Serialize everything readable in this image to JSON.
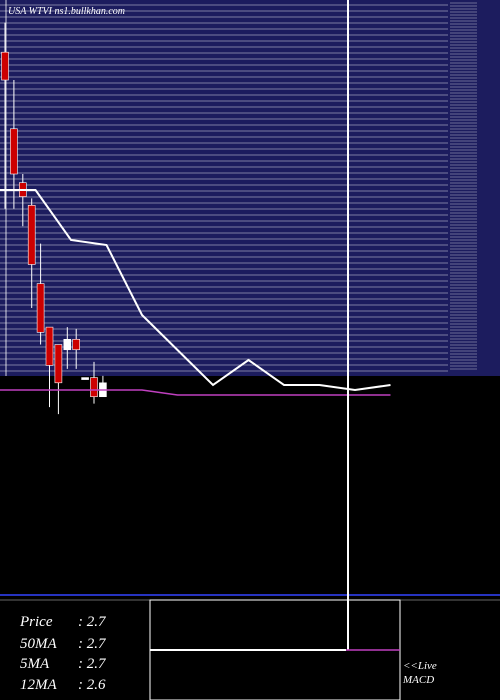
{
  "site": "USA WTVI ns1.bullkhan.com",
  "colors": {
    "price_background": "#1c1c5e",
    "grid_line": "#ffffff",
    "candle_down": "#cc0000",
    "candle_up": "#ffffff",
    "wick": "#ffffff",
    "indicator_line": "#ffffff",
    "ma_line": "#c040c0",
    "blue_line": "#3344ff"
  },
  "info": {
    "price_label": "Price",
    "price_value": ": 2.7",
    "ma50_label": "50MA",
    "ma50_value": ": 2.7",
    "ma5_label": "5MA",
    "ma5_value": ": 2.7",
    "ma12_label": "12MA",
    "ma12_value": ": 2.6"
  },
  "macd_label_1": "<<Live",
  "macd_label_2": "MACD",
  "chart_data": {
    "type": "candlestick",
    "y_axis_labels": "unreadable",
    "candles": [
      {
        "open": 0.85,
        "close": 0.77,
        "high": 0.935,
        "low": 0.4
      },
      {
        "open": 0.63,
        "close": 0.5,
        "high": 0.77,
        "low": 0.4
      },
      {
        "open": 0.475,
        "close": 0.435,
        "high": 0.5,
        "low": 0.35
      },
      {
        "open": 0.41,
        "close": 0.24,
        "high": 0.43,
        "low": 0.115
      },
      {
        "open": 0.185,
        "close": 0.045,
        "high": 0.3,
        "low": 0.01
      },
      {
        "open": 0.06,
        "close": -0.05,
        "high": 0.06,
        "low": -0.17
      },
      {
        "open": 0.01,
        "close": -0.1,
        "high": 0.01,
        "low": -0.19
      },
      {
        "open": -0.005,
        "close": 0.025,
        "high": 0.06,
        "low": -0.06
      },
      {
        "open": 0.025,
        "close": -0.005,
        "high": 0.055,
        "low": -0.06
      },
      {
        "open": -0.085,
        "close": -0.085,
        "high": -0.085,
        "low": -0.085
      },
      {
        "open": -0.085,
        "close": -0.14,
        "high": -0.04,
        "low": -0.16
      },
      {
        "open": -0.14,
        "close": -0.1,
        "high": -0.08,
        "low": -0.14
      }
    ],
    "indicator_line": [
      82,
      82,
      72,
      71,
      57,
      50,
      43,
      48,
      43,
      43,
      42,
      43
    ],
    "ma_line": [
      42,
      42,
      42,
      42,
      42,
      41,
      41,
      41,
      41,
      41,
      41,
      41
    ],
    "macd_line": [
      100,
      100,
      100
    ]
  }
}
